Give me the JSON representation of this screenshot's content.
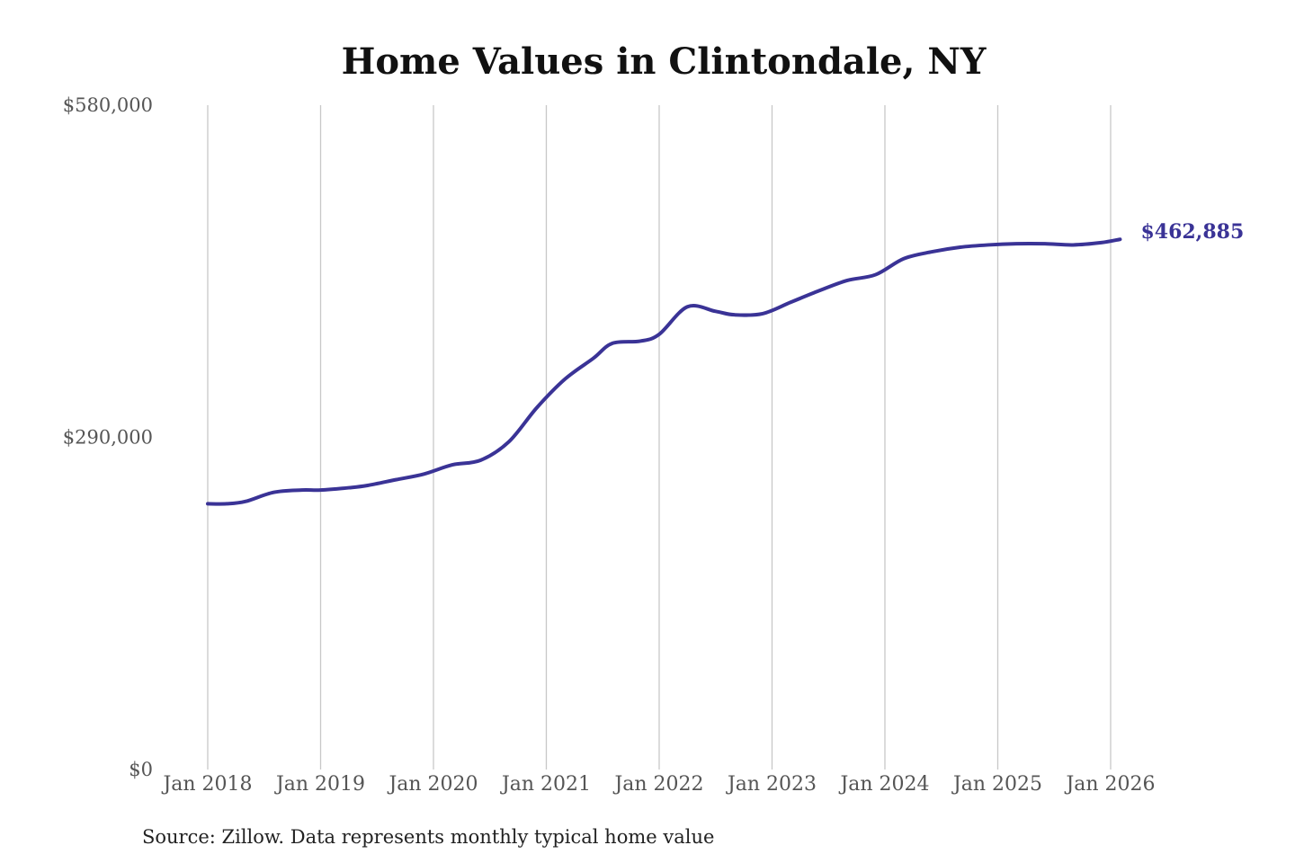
{
  "chart_data": {
    "type": "line",
    "title": "Home Values in Clintondale, NY",
    "xlabel": "",
    "ylabel": "",
    "x_ticks": [
      "Jan 2018",
      "Jan 2019",
      "Jan 2020",
      "Jan 2021",
      "Jan 2022",
      "Jan 2023",
      "Jan 2024",
      "Jan 2025",
      "Jan 2026"
    ],
    "y_ticks": [
      {
        "value": 0,
        "label": "$0"
      },
      {
        "value": 290000,
        "label": "$290,000"
      },
      {
        "value": 580000,
        "label": "$580,000"
      }
    ],
    "ylim": [
      0,
      580000
    ],
    "grid": "vertical",
    "line_color": "#3a3396",
    "series": [
      {
        "points": [
          {
            "x": "2018-01",
            "y": 232000
          },
          {
            "x": "2018-03",
            "y": 232000
          },
          {
            "x": "2018-05",
            "y": 234000
          },
          {
            "x": "2018-08",
            "y": 242000
          },
          {
            "x": "2018-11",
            "y": 244000
          },
          {
            "x": "2019-01",
            "y": 244000
          },
          {
            "x": "2019-04",
            "y": 246000
          },
          {
            "x": "2019-06",
            "y": 248000
          },
          {
            "x": "2019-09",
            "y": 253000
          },
          {
            "x": "2019-12",
            "y": 258000
          },
          {
            "x": "2020-03",
            "y": 266000
          },
          {
            "x": "2020-06",
            "y": 270000
          },
          {
            "x": "2020-09",
            "y": 286000
          },
          {
            "x": "2020-12",
            "y": 316000
          },
          {
            "x": "2021-03",
            "y": 341000
          },
          {
            "x": "2021-06",
            "y": 359000
          },
          {
            "x": "2021-08",
            "y": 372000
          },
          {
            "x": "2021-11",
            "y": 374000
          },
          {
            "x": "2022-01",
            "y": 380000
          },
          {
            "x": "2022-04",
            "y": 404000
          },
          {
            "x": "2022-07",
            "y": 400000
          },
          {
            "x": "2022-09",
            "y": 397000
          },
          {
            "x": "2022-12",
            "y": 398000
          },
          {
            "x": "2023-03",
            "y": 408000
          },
          {
            "x": "2023-06",
            "y": 418000
          },
          {
            "x": "2023-09",
            "y": 427000
          },
          {
            "x": "2023-12",
            "y": 432000
          },
          {
            "x": "2024-03",
            "y": 446000
          },
          {
            "x": "2024-06",
            "y": 452000
          },
          {
            "x": "2024-09",
            "y": 456000
          },
          {
            "x": "2024-12",
            "y": 458000
          },
          {
            "x": "2025-03",
            "y": 459000
          },
          {
            "x": "2025-06",
            "y": 459000
          },
          {
            "x": "2025-09",
            "y": 458000
          },
          {
            "x": "2025-12",
            "y": 460000
          },
          {
            "x": "2026-02",
            "y": 462885
          }
        ]
      }
    ],
    "end_label": "$462,885",
    "source_note": "Source: Zillow. Data represents monthly typical home value"
  }
}
